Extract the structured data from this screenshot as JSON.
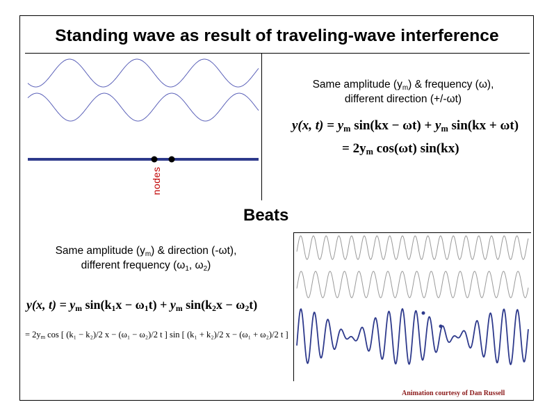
{
  "title": "Standing wave as result of traveling-wave interference",
  "standing": {
    "caption_line1_pre": "Same amplitude (y",
    "caption_line1_sub": "m",
    "caption_line1_post": ") & frequency (ω),",
    "caption_line2": "different direction (+/-ωt)",
    "nodes_label": "nodes",
    "eq_line1": {
      "lhs": "y(x, t) = ",
      "term1_pre": "y",
      "term1_sub": "m",
      "term1_post": " sin(kx − ωt) + ",
      "term2_pre": "y",
      "term2_sub": "m",
      "term2_post": " sin(kx + ωt)"
    },
    "eq_line2": {
      "pre": "= 2y",
      "sub": "m",
      "post": " cos(ωt) sin(kx)"
    },
    "colors": {
      "wave": "#5a60b8",
      "standing_line": "#2e3a8c",
      "node": "#000000",
      "nodes_text": "#c00000"
    }
  },
  "beats": {
    "heading": "Beats",
    "caption_line1_pre": "Same amplitude (y",
    "caption_line1_sub": "m",
    "caption_line1_post": ") & direction (-ωt),",
    "caption_line2_pre": "different frequency (ω",
    "caption_line2_sub1": "1",
    "caption_line2_mid": ", ω",
    "caption_line2_sub2": "2",
    "caption_line2_post": ")",
    "eq_line1": {
      "lhs": "y(x, t) = ",
      "t1a": "y",
      "t1s": "m",
      "t1b": " sin(k",
      "t1k": "1",
      "t1c": "x − ω",
      "t1w": "1",
      "t1d": "t) + ",
      "t2a": "y",
      "t2s": "m",
      "t2b": " sin(k",
      "t2k": "2",
      "t2c": "x − ω",
      "t2w": "2",
      "t2d": "t)"
    },
    "eq_line2": {
      "a": "= 2y",
      "as": "m",
      "b": " cos [ (k₁ − k₂)/2 x − (ω₁ − ω₂)/2 t ] sin [ (k₁ + k₂)/2 x − (ω₁ + ω₂)/2 t ]"
    },
    "credit": "Animation courtesy of Dan Russell",
    "colors": {
      "component_wave": "#999999",
      "sum_wave": "#2e3a8c"
    }
  }
}
